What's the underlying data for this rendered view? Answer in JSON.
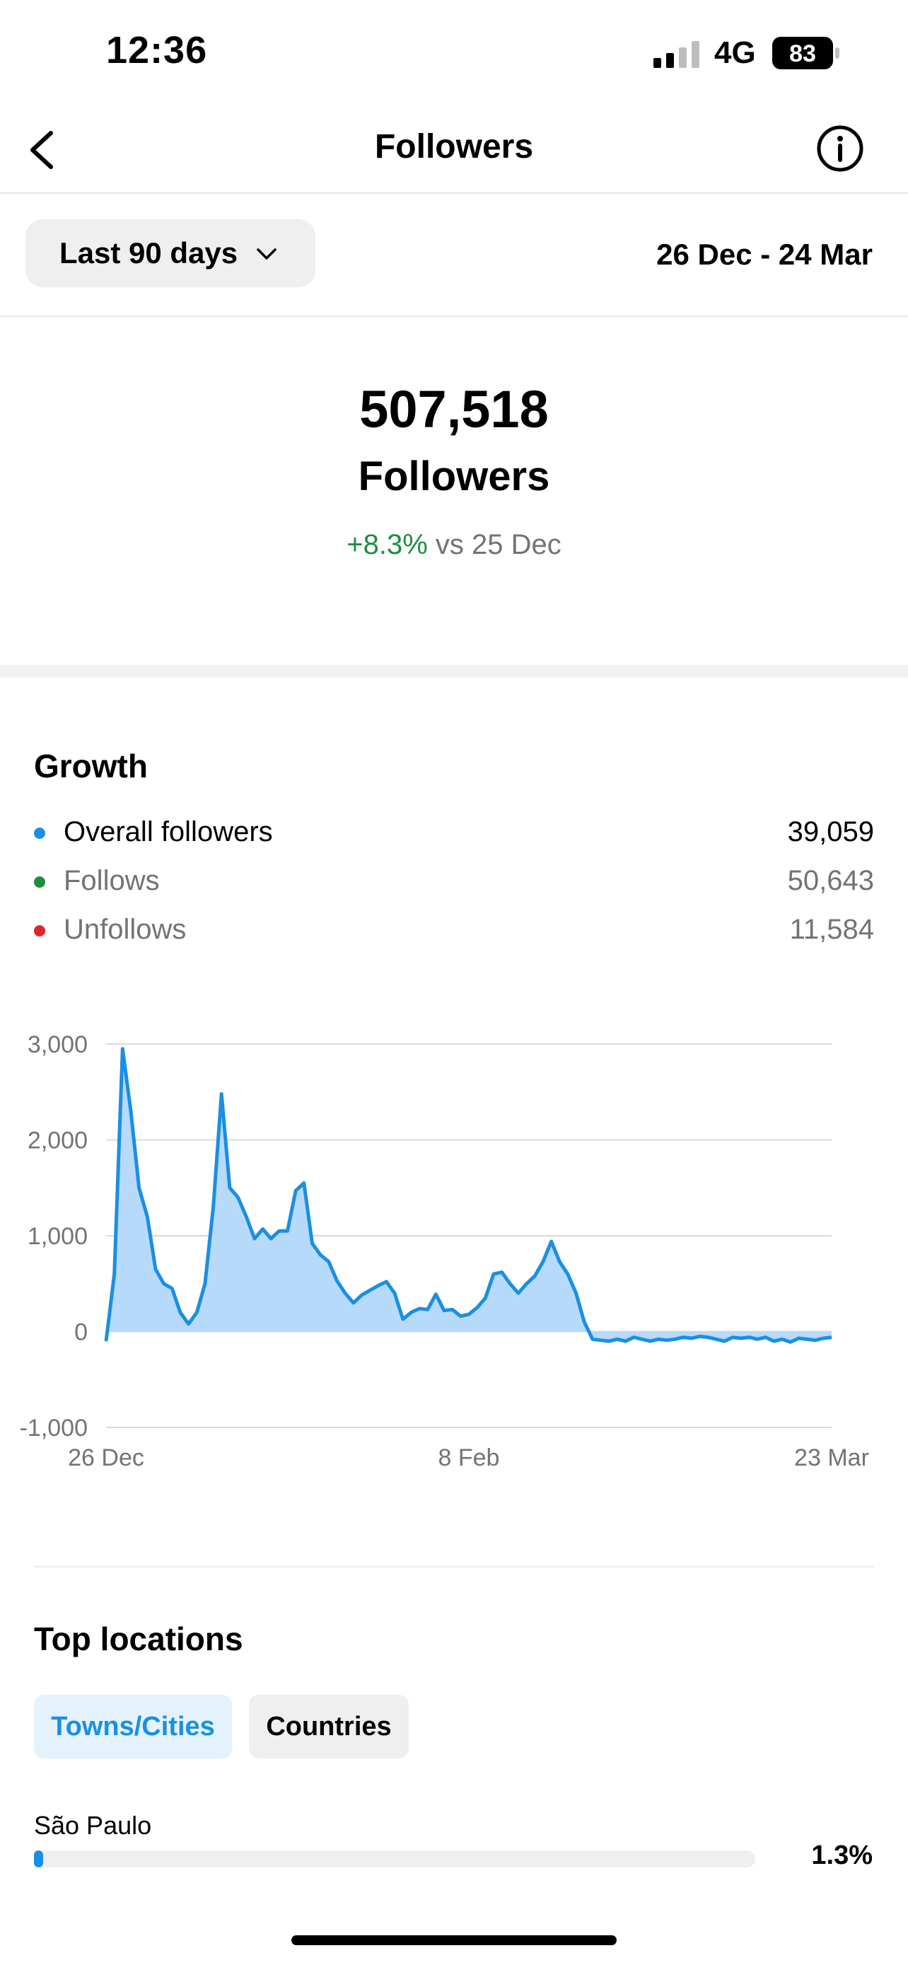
{
  "status_bar": {
    "time": "12:36",
    "network": "4G",
    "battery": "83"
  },
  "nav": {
    "title": "Followers",
    "back_icon": "chevron-left-icon",
    "info_icon": "info-icon"
  },
  "filter": {
    "range_label": "Last 90 days",
    "date_range": "26 Dec - 24 Mar"
  },
  "summary": {
    "total": "507,518",
    "label": "Followers",
    "change": "+8.3%",
    "change_suffix": " vs 25 Dec"
  },
  "growth": {
    "title": "Growth",
    "legend": [
      {
        "label": "Overall followers",
        "value": "39,059",
        "color": "#1a8fe3"
      },
      {
        "label": "Follows",
        "value": "50,643",
        "color": "#1e8e3e"
      },
      {
        "label": "Unfollows",
        "value": "11,584",
        "color": "#e0242c"
      }
    ]
  },
  "chart_data": {
    "type": "area",
    "series": [
      {
        "values": [
          -100,
          600,
          2950,
          2300,
          1500,
          1200,
          650,
          500,
          450,
          200,
          80,
          200,
          500,
          1300,
          2480,
          1500,
          1400,
          1200,
          970,
          1070,
          970,
          1050,
          1050,
          1470,
          1550,
          920,
          800,
          730,
          530,
          400,
          300,
          380,
          430,
          480,
          520,
          400,
          130,
          200,
          240,
          230,
          390,
          220,
          230,
          160,
          180,
          250,
          350,
          600,
          620,
          500,
          400,
          500,
          580,
          730,
          940,
          730,
          600,
          400,
          100,
          -80,
          -90,
          -100,
          -80,
          -100,
          -60,
          -80,
          -100,
          -80,
          -90,
          -80,
          -60,
          -70,
          -50,
          -60,
          -80,
          -100,
          -60,
          -70,
          -60,
          -80,
          -60,
          -100,
          -80,
          -110,
          -70,
          -80,
          -90,
          -70,
          -60
        ]
      }
    ],
    "x_tick_labels": [
      "26 Dec",
      "8 Feb",
      "23 Mar"
    ],
    "y_ticks": [
      3000,
      2000,
      1000,
      0,
      -1000
    ],
    "y_tick_labels": [
      "3,000",
      "2,000",
      "1,000",
      "0",
      "-1,000"
    ],
    "ylim": [
      -1000,
      3000
    ],
    "grid": true,
    "color": "#1a8fe3",
    "fill_color": "#b7dafa"
  },
  "locations": {
    "title": "Top locations",
    "tabs": [
      "Towns/Cities",
      "Countries"
    ],
    "items": [
      {
        "name": "São Paulo",
        "percent": "1.3%",
        "fraction": 0.013
      }
    ]
  }
}
